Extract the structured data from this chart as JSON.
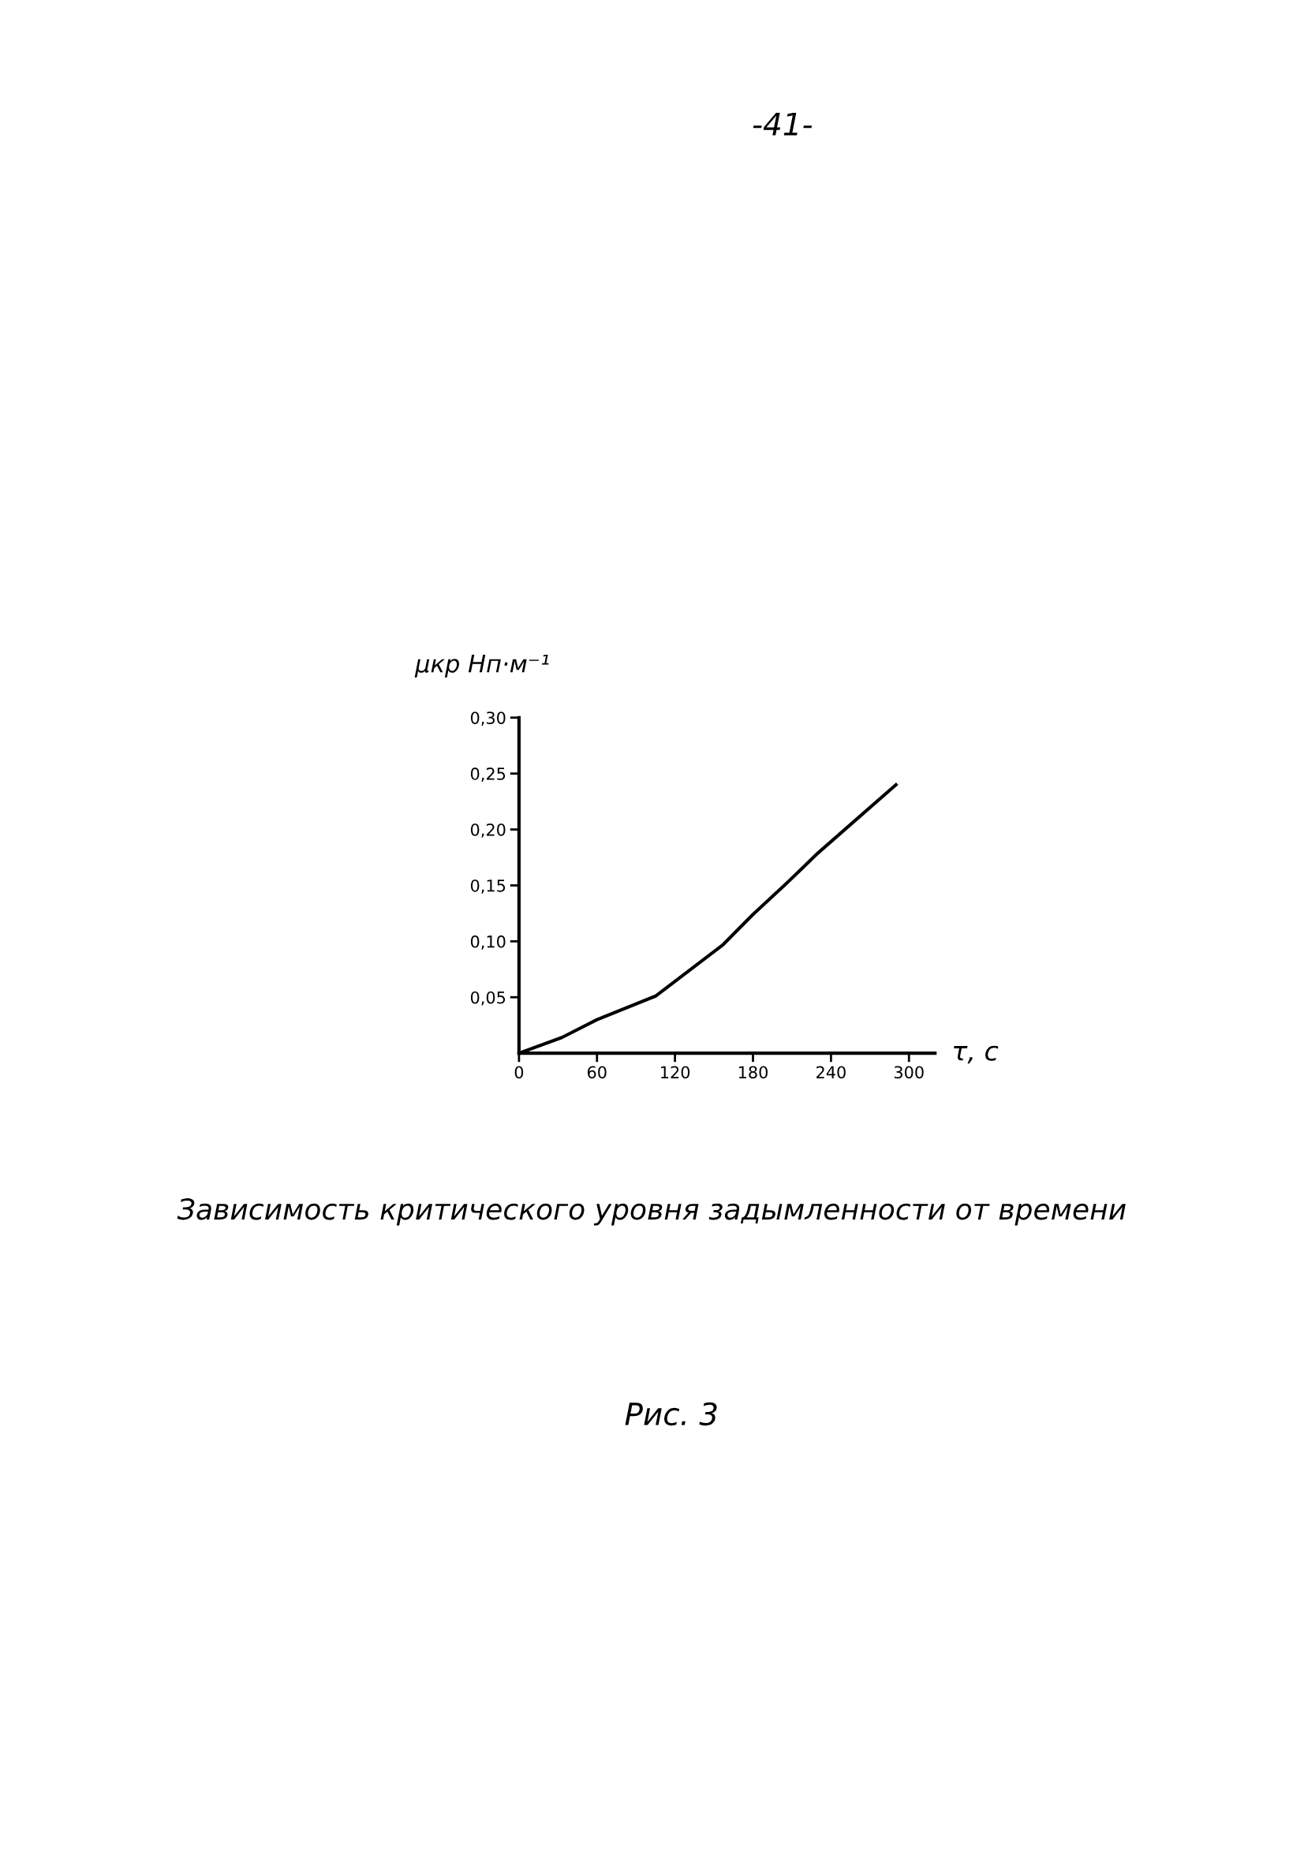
{
  "chart_data": {
    "type": "line",
    "xlabel": "τ, с",
    "ylabel": "μкр Нп·м⁻¹",
    "title": "Зависимость критического уровня задымленности от времени",
    "annotations": [
      "-41-",
      "Рис. 3"
    ],
    "x": [
      0,
      33,
      60,
      105,
      157,
      180,
      206,
      230,
      290
    ],
    "series": [
      {
        "color": "#000000",
        "values": [
          0,
          0.014,
          0.03,
          0.051,
          0.097,
          0.124,
          0.152,
          0.179,
          0.24
        ]
      }
    ],
    "xlim": [
      0,
      320
    ],
    "xticks": [
      0,
      60,
      120,
      180,
      240,
      300
    ],
    "ylim": [
      0,
      0.3
    ],
    "yticks": [
      {
        "value": 0.05,
        "label": "0,05"
      },
      {
        "value": 0.1,
        "label": "0,10"
      },
      {
        "value": 0.15,
        "label": "0,15"
      },
      {
        "value": 0.2,
        "label": "0,20"
      },
      {
        "value": 0.25,
        "label": "0,25"
      },
      {
        "value": 0.3,
        "label": "0,30"
      }
    ],
    "grid": false,
    "legend": false,
    "marker": "none",
    "line_style": "solid"
  }
}
